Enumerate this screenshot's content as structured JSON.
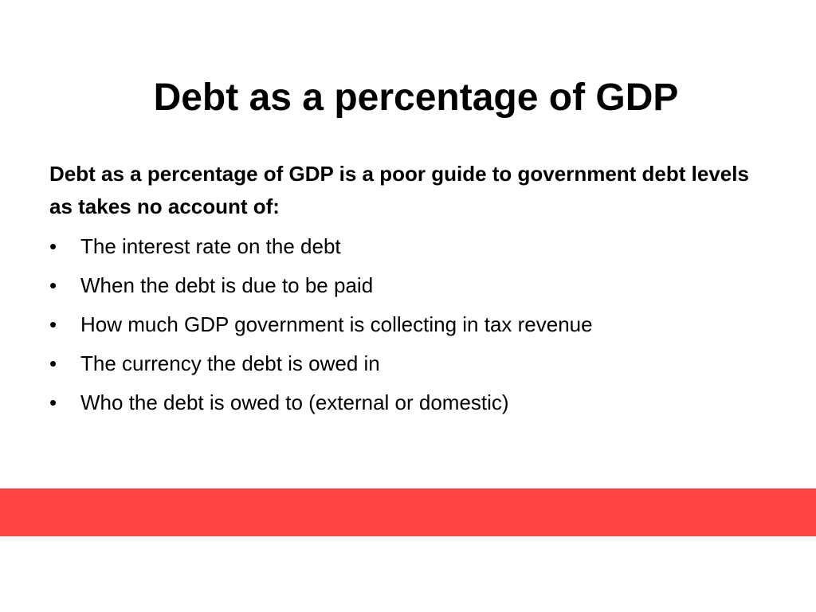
{
  "slide": {
    "title": "Debt as a percentage of GDP",
    "intro": "Debt as a percentage of GDP is a poor guide to government debt levels as takes no account of:",
    "bullet_marker": "•",
    "bullets": [
      "The interest rate on the debt",
      "When the debt is due to be paid",
      "How much GDP government is collecting in tax revenue",
      "The currency the debt is owed in",
      "Who the debt is owed to (external or domestic)"
    ]
  },
  "colors": {
    "accent_band": "#ff4545",
    "text": "#000000",
    "background": "#ffffff"
  }
}
